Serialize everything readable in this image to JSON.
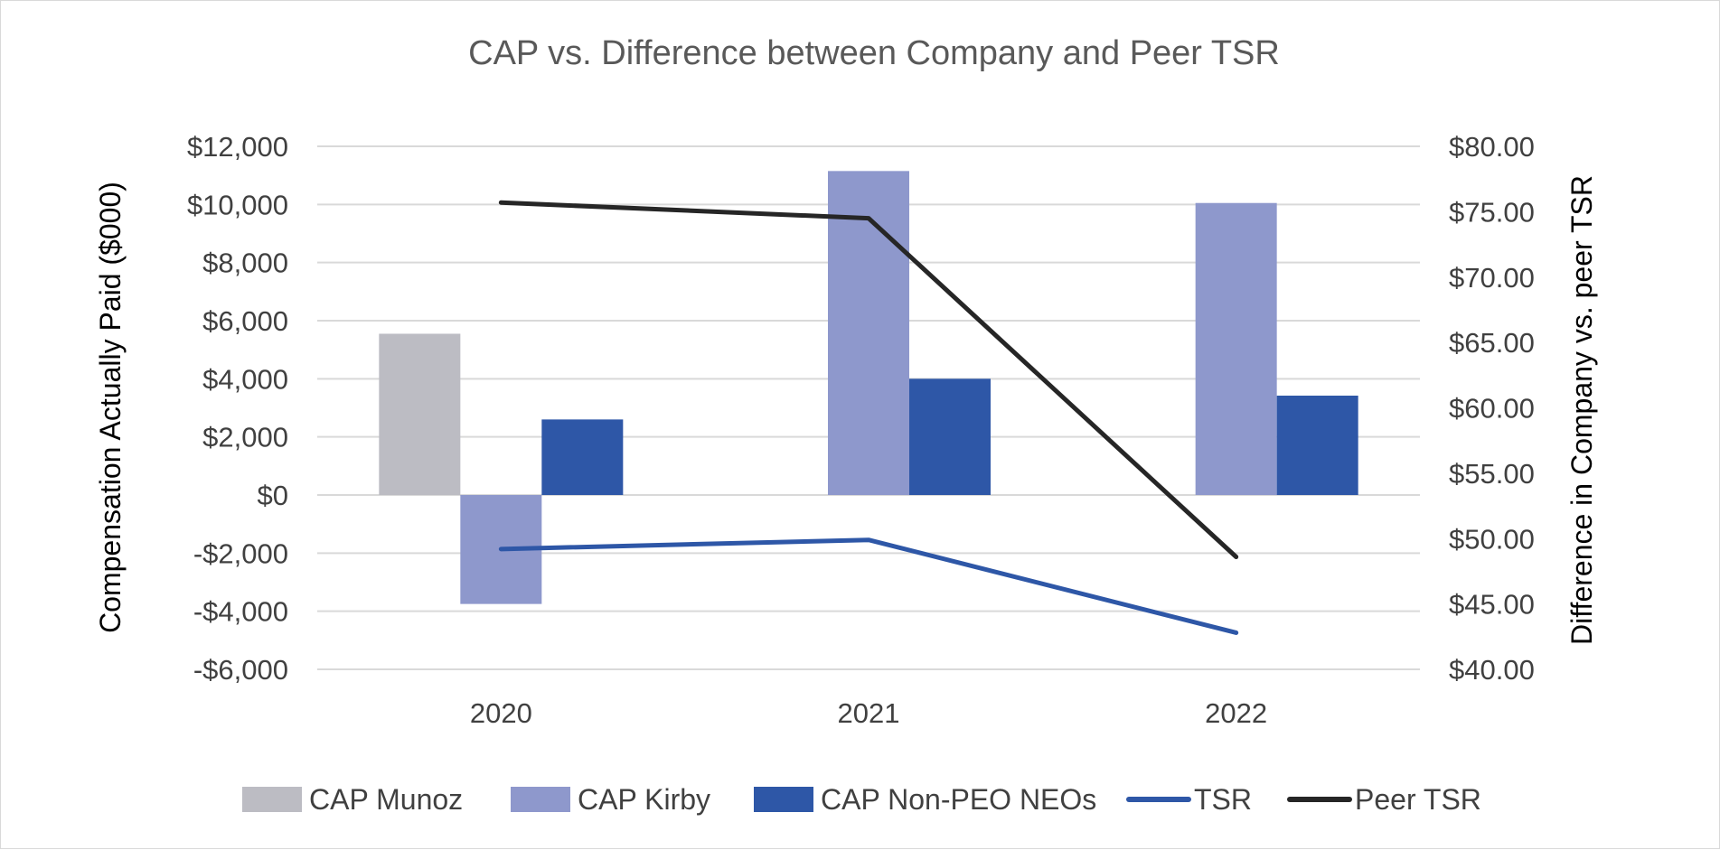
{
  "chart_data": {
    "type": "bar",
    "title": "CAP vs. Difference between Company and Peer TSR",
    "categories": [
      "2020",
      "2021",
      "2022"
    ],
    "ylabel": "Compensation Actually Paid ($000)",
    "ylabel_right": "Difference in Company vs. peer TSR",
    "ylim": [
      -6000,
      12000
    ],
    "ylim_right": [
      40,
      80
    ],
    "y_ticks": [
      12000,
      10000,
      8000,
      6000,
      4000,
      2000,
      0,
      -2000,
      -4000,
      -6000
    ],
    "y_tick_labels": [
      "$12,000",
      "$10,000",
      "$8,000",
      "$6,000",
      "$4,000",
      "$2,000",
      "$0",
      "-$2,000",
      "-$4,000",
      "-$6,000"
    ],
    "y2_ticks": [
      80,
      75,
      70,
      65,
      60,
      55,
      50,
      45,
      40
    ],
    "y2_tick_labels": [
      "$80.00",
      "$75.00",
      "$70.00",
      "$65.00",
      "$60.00",
      "$55.00",
      "$50.00",
      "$45.00",
      "$40.00"
    ],
    "grid": true,
    "legend_position": "bottom",
    "series": [
      {
        "name": "CAP Munoz",
        "kind": "bar",
        "axis": "left",
        "color": "#bcbcc3",
        "values": [
          5550,
          null,
          null
        ]
      },
      {
        "name": "CAP Kirby",
        "kind": "bar",
        "axis": "left",
        "color": "#8e98cc",
        "values": [
          -3750,
          11150,
          10050
        ]
      },
      {
        "name": "CAP Non-PEO NEOs",
        "kind": "bar",
        "axis": "left",
        "color": "#2e57a7",
        "values": [
          2600,
          4000,
          3420
        ]
      },
      {
        "name": "TSR",
        "kind": "line",
        "axis": "right",
        "color": "#2e57a7",
        "values": [
          49.2,
          49.9,
          42.8
        ]
      },
      {
        "name": "Peer TSR",
        "kind": "line",
        "axis": "right",
        "color": "#262626",
        "values": [
          75.7,
          74.5,
          48.6
        ]
      }
    ]
  }
}
